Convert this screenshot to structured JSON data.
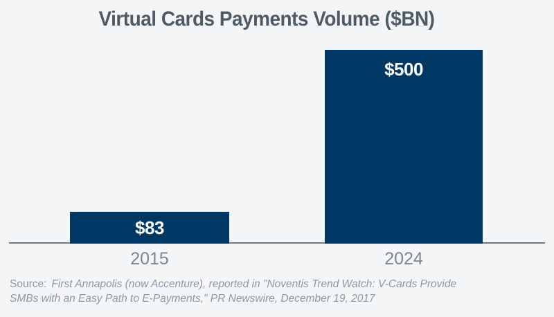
{
  "chart_data": {
    "type": "bar",
    "title": "Virtual Cards Payments Volume ($BN)",
    "categories": [
      "2015",
      "2024"
    ],
    "values": [
      83,
      500
    ],
    "value_labels": [
      "$83",
      "$500"
    ],
    "xlabel": "",
    "ylabel": "",
    "ylim": [
      0,
      500
    ],
    "grid": false,
    "legend": false,
    "bar_color": "#003865",
    "value_label_color": "#ffffff",
    "value_label_positions": [
      "inside-center",
      "inside-top"
    ]
  },
  "source": {
    "prefix": "Source:",
    "line1": "First Annapolis (now Accenture), reported in \"Noventis Trend Watch: V-Cards Provide",
    "line2": "SMBs with an Easy Path to E-Payments,\" PR Newswire, December 19, 2017"
  },
  "colors": {
    "background": "#f4f5f7",
    "title_text": "#4e5a66",
    "axis_line": "#6f7a84",
    "category_label": "#7c8893",
    "source_text": "#8c98a3"
  }
}
